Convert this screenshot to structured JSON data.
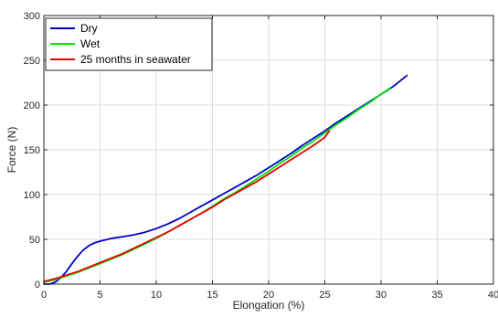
{
  "chart_data": {
    "type": "line",
    "title": "",
    "xlabel": "Elongation (%)",
    "ylabel": "Force (N)",
    "xlim": [
      0,
      40
    ],
    "ylim": [
      0,
      300
    ],
    "xticks": [
      0,
      5,
      10,
      15,
      20,
      25,
      30,
      35,
      40
    ],
    "yticks": [
      0,
      50,
      100,
      150,
      200,
      250,
      300
    ],
    "grid": true,
    "legend_position": "top-left",
    "series": [
      {
        "name": "Dry",
        "color": "#0000cc",
        "x": [
          0,
          0.5,
          1,
          1.5,
          2,
          2.5,
          3,
          3.5,
          4,
          4.5,
          5,
          6,
          7,
          8,
          9,
          10,
          11,
          12,
          13,
          14,
          15,
          16,
          17,
          18,
          19,
          20,
          21,
          22,
          23,
          24,
          25,
          26,
          27,
          28,
          29,
          30,
          31,
          32.3
        ],
        "y": [
          0,
          0,
          2,
          7,
          14,
          23,
          31,
          38,
          43,
          46,
          48,
          51,
          53,
          55,
          58,
          62,
          67,
          73,
          80,
          87,
          94,
          101,
          108,
          115,
          122,
          130,
          138,
          146,
          155,
          163,
          171,
          180,
          188,
          196,
          204,
          212,
          220,
          233
        ]
      },
      {
        "name": "Wet",
        "color": "#00e600",
        "x": [
          0,
          1,
          2,
          3,
          4,
          5,
          6,
          7,
          8,
          9,
          10,
          11,
          12,
          13,
          14,
          15,
          16,
          17,
          18,
          19,
          20,
          21,
          22,
          23,
          24,
          25,
          26,
          27,
          28,
          29,
          30,
          30.8
        ],
        "y": [
          2,
          5,
          9,
          13,
          18,
          23,
          28,
          33,
          39,
          45,
          51,
          58,
          65,
          72,
          79,
          87,
          95,
          102,
          110,
          118,
          126,
          135,
          143,
          152,
          160,
          169,
          178,
          186,
          195,
          203,
          212,
          219
        ]
      },
      {
        "name": "25 months in seawater",
        "color": "#e60000",
        "x": [
          0,
          1,
          2,
          3,
          4,
          5,
          6,
          7,
          8,
          9,
          10,
          11,
          12,
          13,
          14,
          15,
          16,
          17,
          18,
          19,
          20,
          21,
          22,
          23,
          24,
          25,
          25.4
        ],
        "y": [
          3,
          6,
          10,
          14,
          19,
          24,
          29,
          34,
          40,
          46,
          52,
          58,
          65,
          72,
          79,
          86,
          94,
          101,
          108,
          115,
          123,
          131,
          139,
          147,
          155,
          164,
          171
        ]
      }
    ]
  }
}
